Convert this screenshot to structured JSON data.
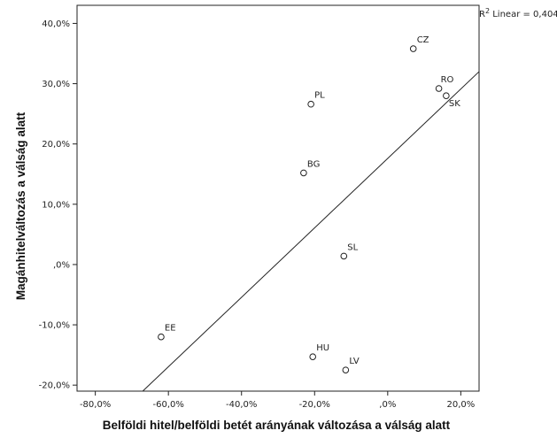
{
  "chart_data": {
    "type": "scatter",
    "title": "",
    "xlabel": "Belföldi hitel/belföldi betét arányának változása a válság alatt",
    "ylabel": "Magánhitelváltozás a válság alatt",
    "xlim": [
      -85,
      25
    ],
    "ylim": [
      -21,
      43
    ],
    "x_ticks": [
      -80,
      -60,
      -40,
      -20,
      0,
      20
    ],
    "y_ticks": [
      -20,
      -10,
      0,
      10,
      20,
      30,
      40
    ],
    "x_tick_labels": [
      "-80,0%",
      "-60,0%",
      "-40,0%",
      "-20,0%",
      ",0%",
      "20,0%"
    ],
    "y_tick_labels": [
      "-20,0%",
      "-10,0%",
      ",0%",
      "10,0%",
      "20,0%",
      "30,0%",
      "40,0%"
    ],
    "points": [
      {
        "label": "CZ",
        "x": 7.0,
        "y": 35.8
      },
      {
        "label": "RO",
        "x": 14.0,
        "y": 29.2
      },
      {
        "label": "SK",
        "x": 16.0,
        "y": 28.0
      },
      {
        "label": "PL",
        "x": -21.0,
        "y": 26.6
      },
      {
        "label": "BG",
        "x": -23.0,
        "y": 15.2
      },
      {
        "label": "SL",
        "x": -12.0,
        "y": 1.4
      },
      {
        "label": "EE",
        "x": -62.0,
        "y": -12.0
      },
      {
        "label": "HU",
        "x": -20.5,
        "y": -15.3
      },
      {
        "label": "LV",
        "x": -11.5,
        "y": -17.5
      }
    ],
    "fit_line": {
      "type": "linear",
      "r2_label_prefix": "R",
      "r2_label_suffix": " Linear = 0,404",
      "x": [
        -70.5,
        25
      ],
      "y": [
        -23,
        32
      ]
    },
    "grid": false,
    "legend": "none"
  }
}
